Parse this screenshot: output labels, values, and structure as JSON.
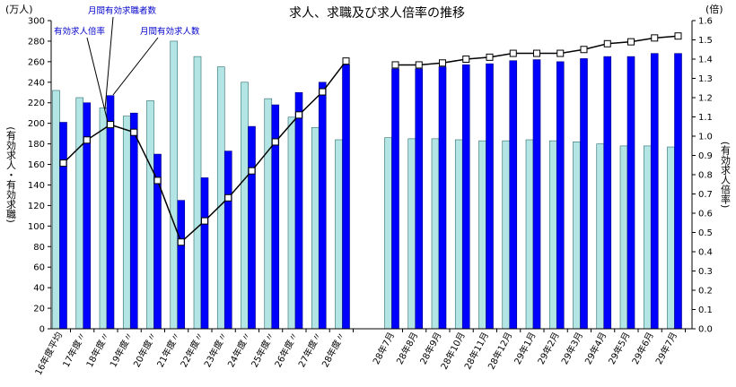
{
  "chart_data": {
    "type": "bar",
    "title": "求人、求職及び求人倍率の推移",
    "left_unit": "(万人)",
    "right_unit": "(倍)",
    "ylabel_left": "(有効求人・有効求職)",
    "ylabel_right": "(有効求人倍率)",
    "ylim_left": [
      0,
      300
    ],
    "ylim_right": [
      0,
      1.6
    ],
    "left_ticks": [
      0,
      20,
      40,
      60,
      80,
      100,
      120,
      140,
      160,
      180,
      200,
      220,
      240,
      260,
      280,
      300
    ],
    "right_ticks": [
      "0.0",
      "0.1",
      "0.2",
      "0.3",
      "0.4",
      "0.5",
      "0.6",
      "0.7",
      "0.8",
      "0.9",
      "1.0",
      "1.1",
      "1.2",
      "1.3",
      "1.4",
      "1.5",
      "1.6"
    ],
    "categories_annual": [
      "16年度平均",
      "17年度〃",
      "18年度〃",
      "19年度〃",
      "20年度〃",
      "21年度〃",
      "22年度〃",
      "23年度〃",
      "24年度〃",
      "25年度〃",
      "26年度〃",
      "27年度〃",
      "28年度〃"
    ],
    "categories_monthly": [
      "28年7月",
      "28年8月",
      "28年9月",
      "28年10月",
      "28年11月",
      "28年12月",
      "29年1月",
      "29年2月",
      "29年3月",
      "29年4月",
      "29年5月",
      "29年6月",
      "29年7月"
    ],
    "series": [
      {
        "name": "月間有効求職者数",
        "color": "#b3e5e5",
        "values_annual": [
          232,
          225,
          215,
          207,
          222,
          280,
          265,
          255,
          240,
          224,
          206,
          196,
          184
        ],
        "values_monthly": [
          186,
          185,
          185,
          184,
          183,
          183,
          184,
          183,
          182,
          180,
          178,
          178,
          177
        ]
      },
      {
        "name": "月間有効求人数",
        "color": "#0000ff",
        "values_annual": [
          201,
          220,
          227,
          210,
          170,
          125,
          147,
          173,
          197,
          218,
          230,
          240,
          257
        ]
      },
      {
        "name": "有効求人倍率",
        "color": "#000000",
        "values_annual": [
          0.86,
          0.98,
          1.06,
          1.02,
          0.77,
          0.45,
          0.56,
          0.68,
          0.82,
          0.97,
          1.11,
          1.23,
          1.39
        ],
        "values_monthly": [
          1.37,
          1.37,
          1.38,
          1.4,
          1.41,
          1.43,
          1.43,
          1.43,
          1.45,
          1.48,
          1.49,
          1.51,
          1.52
        ]
      }
    ],
    "monthly_openings": [
      253,
      253,
      255,
      257,
      258,
      261,
      262,
      260,
      263,
      265,
      265,
      268,
      268
    ],
    "annotations": [
      "月間有効求職者数",
      "有効求人倍率",
      "月間有効求人数"
    ]
  }
}
